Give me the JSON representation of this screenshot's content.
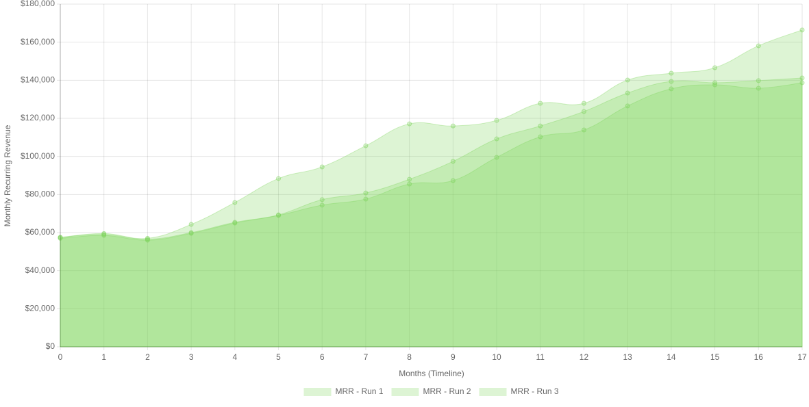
{
  "chart_data": {
    "type": "area",
    "x_label": "Months (Timeline)",
    "y_label": "Monthly Recurring Revenue",
    "x": [
      0,
      1,
      2,
      3,
      4,
      5,
      6,
      7,
      8,
      9,
      10,
      11,
      12,
      13,
      14,
      15,
      16,
      17
    ],
    "xlim": [
      0,
      17
    ],
    "xticks": [
      0,
      1,
      2,
      3,
      4,
      5,
      6,
      7,
      8,
      9,
      10,
      11,
      12,
      13,
      14,
      15,
      16,
      17
    ],
    "ylim": [
      0,
      180000
    ],
    "yticks": [
      {
        "value": 0,
        "label": "$0"
      },
      {
        "value": 20000,
        "label": "$20,000"
      },
      {
        "value": 40000,
        "label": "$40,000"
      },
      {
        "value": 60000,
        "label": "$60,000"
      },
      {
        "value": 80000,
        "label": "$80,000"
      },
      {
        "value": 100000,
        "label": "$100,000"
      },
      {
        "value": 120000,
        "label": "$120,000"
      },
      {
        "value": 140000,
        "label": "$140,000"
      },
      {
        "value": 160000,
        "label": "$160,000"
      },
      {
        "value": 180000,
        "label": "$180,000"
      }
    ],
    "grid": true,
    "legend": "bottom",
    "series": [
      {
        "name": "MRR - Run 1",
        "color": "rgba(124,212,90,0.26)",
        "values": [
          57500,
          59500,
          57000,
          64300,
          75800,
          88400,
          94500,
          105600,
          117100,
          116000,
          118900,
          127900,
          127900,
          140100,
          143700,
          146600,
          158100,
          166400
        ]
      },
      {
        "name": "MRR - Run 2",
        "color": "rgba(124,212,90,0.26)",
        "values": [
          57500,
          59000,
          56500,
          60000,
          65400,
          69300,
          77300,
          80800,
          88000,
          97400,
          109200,
          116000,
          123600,
          133300,
          139400,
          138700,
          139800,
          141200
        ]
      },
      {
        "name": "MRR - Run 3",
        "color": "rgba(124,212,90,0.26)",
        "values": [
          57000,
          58500,
          56000,
          59600,
          65000,
          69000,
          74400,
          77600,
          85500,
          87300,
          99500,
          110300,
          113900,
          126500,
          135500,
          137600,
          135800,
          138700
        ]
      }
    ]
  }
}
